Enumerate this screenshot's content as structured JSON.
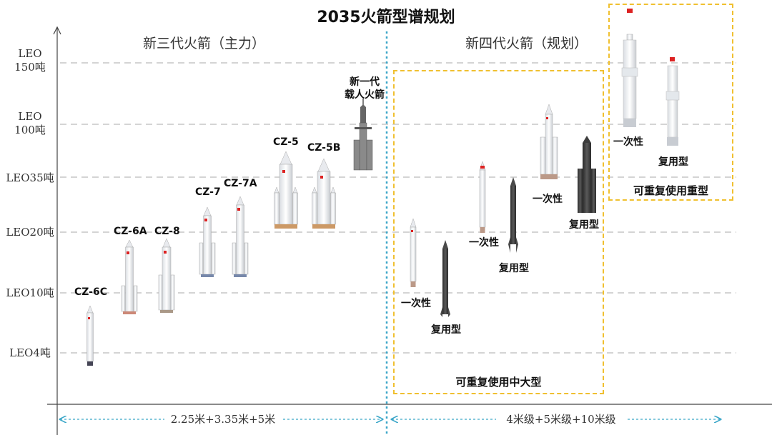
{
  "title": "2035火箭型谱规划",
  "y_levels": [
    {
      "line1": "LEO",
      "line2": "150吨"
    },
    {
      "line1": "LEO",
      "line2": "100吨"
    },
    {
      "line1": "LEO35吨",
      "line2": ""
    },
    {
      "line1": "LEO20吨",
      "line2": ""
    },
    {
      "line1": "LEO10吨",
      "line2": ""
    },
    {
      "line1": "LEO4吨",
      "line2": ""
    }
  ],
  "sections": {
    "gen3": "新三代火箭（主力）",
    "gen4": "新四代火箭（规划）"
  },
  "rockets": {
    "cz6c": "CZ-6C",
    "cz6a": "CZ-6A",
    "cz8": "CZ-8",
    "cz7": "CZ-7",
    "cz7a": "CZ-7A",
    "cz5": "CZ-5",
    "cz5b": "CZ-5B",
    "crewed_line1": "新一代",
    "crewed_line2": "载人火箭"
  },
  "gen4_labels": {
    "expendable": "一次性",
    "reusable": "复用型"
  },
  "boxes": {
    "medium_large": "可重复使用中大型",
    "heavy": "可重复使用重型"
  },
  "diameters": {
    "gen3": "2.25米+3.35米+5米",
    "gen4": "4米级+5米级+10米级"
  },
  "colors": {
    "gridline": "#bbbbbb",
    "divider": "#3aa6c8",
    "box_border": "#f0c030",
    "reusable_rocket": "#4a4a4a"
  }
}
